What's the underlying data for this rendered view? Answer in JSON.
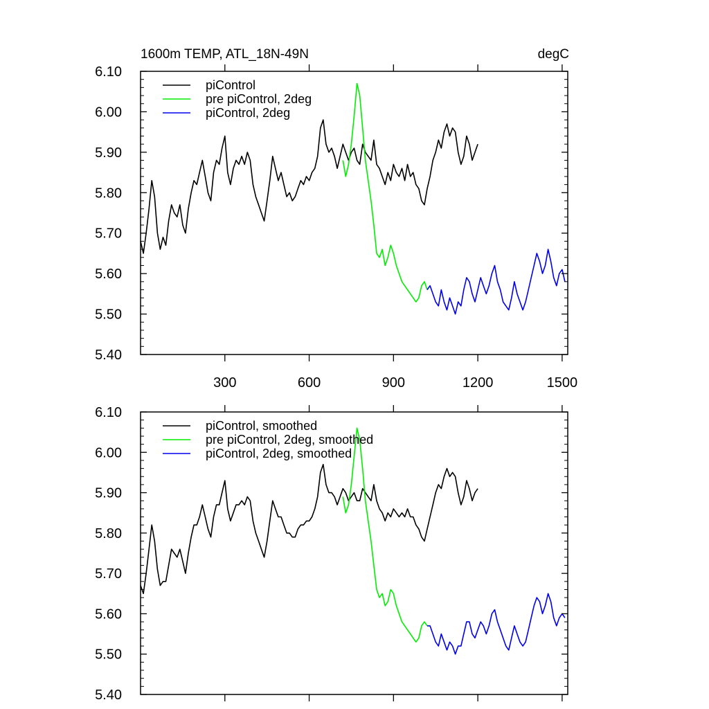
{
  "figure": {
    "title_left": "1600m TEMP, ATL_18N-49N",
    "title_right": "degC"
  },
  "colors": {
    "piControl": "#000000",
    "pre_piControl_2deg": "#00ee00",
    "piControl_2deg": "#0000ee"
  },
  "chart_data": [
    {
      "type": "line",
      "panel": "top",
      "title": "1600m TEMP, ATL_18N-49N",
      "units": "degC",
      "xlim": [
        0,
        1520
      ],
      "ylim": [
        5.4,
        6.1
      ],
      "xticks": [
        300,
        600,
        900,
        1200,
        1500
      ],
      "ytick_labels": [
        "5.40",
        "5.50",
        "5.60",
        "5.70",
        "5.80",
        "5.90",
        "6.00",
        "6.10"
      ],
      "legend_position": "top-left",
      "series": [
        {
          "name": "piControl",
          "color": "#000000",
          "x": [
            0,
            10,
            20,
            30,
            40,
            50,
            60,
            70,
            80,
            90,
            100,
            110,
            120,
            130,
            140,
            150,
            160,
            170,
            180,
            190,
            200,
            210,
            220,
            230,
            240,
            250,
            260,
            270,
            280,
            290,
            300,
            310,
            320,
            330,
            340,
            350,
            360,
            370,
            380,
            390,
            400,
            410,
            420,
            430,
            440,
            450,
            460,
            470,
            480,
            490,
            500,
            510,
            520,
            530,
            540,
            550,
            560,
            570,
            580,
            590,
            600,
            610,
            620,
            630,
            640,
            650,
            660,
            670,
            680,
            690,
            700,
            710,
            720,
            730,
            740,
            750,
            760,
            770,
            780,
            790,
            800,
            810,
            820,
            830,
            840,
            850,
            860,
            870,
            880,
            890,
            900,
            910,
            920,
            930,
            940,
            950,
            960,
            970,
            980,
            990,
            1000,
            1010,
            1020,
            1030,
            1040,
            1050,
            1060,
            1070,
            1080,
            1090,
            1100,
            1110,
            1120,
            1130,
            1140,
            1150,
            1160,
            1170,
            1180,
            1190,
            1200
          ],
          "y": [
            5.68,
            5.65,
            5.7,
            5.76,
            5.83,
            5.79,
            5.7,
            5.66,
            5.69,
            5.67,
            5.73,
            5.77,
            5.75,
            5.74,
            5.77,
            5.72,
            5.7,
            5.76,
            5.8,
            5.83,
            5.82,
            5.85,
            5.88,
            5.84,
            5.8,
            5.78,
            5.85,
            5.88,
            5.87,
            5.91,
            5.94,
            5.85,
            5.82,
            5.86,
            5.88,
            5.87,
            5.89,
            5.87,
            5.9,
            5.88,
            5.82,
            5.79,
            5.77,
            5.75,
            5.73,
            5.78,
            5.83,
            5.89,
            5.86,
            5.83,
            5.85,
            5.82,
            5.79,
            5.8,
            5.78,
            5.79,
            5.81,
            5.83,
            5.82,
            5.84,
            5.83,
            5.85,
            5.86,
            5.89,
            5.96,
            5.98,
            5.92,
            5.9,
            5.91,
            5.89,
            5.86,
            5.89,
            5.92,
            5.9,
            5.88,
            5.9,
            5.91,
            5.88,
            5.87,
            5.92,
            5.9,
            5.89,
            5.88,
            5.93,
            5.87,
            5.86,
            5.84,
            5.82,
            5.85,
            5.83,
            5.87,
            5.85,
            5.84,
            5.86,
            5.83,
            5.87,
            5.84,
            5.85,
            5.82,
            5.81,
            5.78,
            5.77,
            5.81,
            5.84,
            5.88,
            5.9,
            5.93,
            5.91,
            5.95,
            5.97,
            5.94,
            5.96,
            5.95,
            5.9,
            5.87,
            5.89,
            5.94,
            5.92,
            5.88,
            5.9,
            5.92
          ]
        },
        {
          "name": "pre piControl, 2deg",
          "color": "#00ee00",
          "x": [
            720,
            730,
            740,
            750,
            760,
            770,
            780,
            790,
            800,
            810,
            820,
            830,
            840,
            850,
            860,
            870,
            880,
            890,
            900,
            910,
            920,
            930,
            940,
            950,
            960,
            970,
            980,
            990,
            1000,
            1010,
            1020
          ],
          "y": [
            5.88,
            5.84,
            5.87,
            5.92,
            5.99,
            6.07,
            6.04,
            5.96,
            5.88,
            5.83,
            5.78,
            5.72,
            5.65,
            5.64,
            5.66,
            5.62,
            5.64,
            5.67,
            5.65,
            5.62,
            5.6,
            5.58,
            5.57,
            5.56,
            5.55,
            5.54,
            5.53,
            5.54,
            5.57,
            5.58,
            5.56
          ]
        },
        {
          "name": "piControl, 2deg",
          "color": "#0000ee",
          "x": [
            1020,
            1030,
            1040,
            1050,
            1060,
            1070,
            1080,
            1090,
            1100,
            1110,
            1120,
            1130,
            1140,
            1150,
            1160,
            1170,
            1180,
            1190,
            1200,
            1210,
            1220,
            1230,
            1240,
            1250,
            1260,
            1270,
            1280,
            1290,
            1300,
            1310,
            1320,
            1330,
            1340,
            1350,
            1360,
            1370,
            1380,
            1390,
            1400,
            1410,
            1420,
            1430,
            1440,
            1450,
            1460,
            1470,
            1480,
            1490,
            1500,
            1510
          ],
          "y": [
            5.56,
            5.57,
            5.55,
            5.53,
            5.52,
            5.56,
            5.53,
            5.51,
            5.54,
            5.52,
            5.5,
            5.53,
            5.52,
            5.56,
            5.59,
            5.58,
            5.55,
            5.53,
            5.56,
            5.59,
            5.57,
            5.55,
            5.57,
            5.6,
            5.62,
            5.58,
            5.56,
            5.53,
            5.52,
            5.51,
            5.54,
            5.58,
            5.55,
            5.53,
            5.51,
            5.53,
            5.56,
            5.59,
            5.62,
            5.65,
            5.63,
            5.6,
            5.62,
            5.66,
            5.63,
            5.59,
            5.57,
            5.6,
            5.61,
            5.58
          ]
        }
      ]
    },
    {
      "type": "line",
      "panel": "bottom",
      "xlim": [
        0,
        1520
      ],
      "ylim": [
        5.4,
        6.1
      ],
      "xticks": [
        300,
        600,
        900,
        1200,
        1500
      ],
      "ytick_labels": [
        "5.40",
        "5.50",
        "5.60",
        "5.70",
        "5.80",
        "5.90",
        "6.00",
        "6.10"
      ],
      "legend_position": "top-left",
      "series": [
        {
          "name": "piControl, smoothed",
          "color": "#000000",
          "x": [
            0,
            10,
            20,
            30,
            40,
            50,
            60,
            70,
            80,
            90,
            100,
            110,
            120,
            130,
            140,
            150,
            160,
            170,
            180,
            190,
            200,
            210,
            220,
            230,
            240,
            250,
            260,
            270,
            280,
            290,
            300,
            310,
            320,
            330,
            340,
            350,
            360,
            370,
            380,
            390,
            400,
            410,
            420,
            430,
            440,
            450,
            460,
            470,
            480,
            490,
            500,
            510,
            520,
            530,
            540,
            550,
            560,
            570,
            580,
            590,
            600,
            610,
            620,
            630,
            640,
            650,
            660,
            670,
            680,
            690,
            700,
            710,
            720,
            730,
            740,
            750,
            760,
            770,
            780,
            790,
            800,
            810,
            820,
            830,
            840,
            850,
            860,
            870,
            880,
            890,
            900,
            910,
            920,
            930,
            940,
            950,
            960,
            970,
            980,
            990,
            1000,
            1010,
            1020,
            1030,
            1040,
            1050,
            1060,
            1070,
            1080,
            1090,
            1100,
            1110,
            1120,
            1130,
            1140,
            1150,
            1160,
            1170,
            1180,
            1190,
            1200
          ],
          "y": [
            5.67,
            5.65,
            5.7,
            5.76,
            5.82,
            5.78,
            5.71,
            5.67,
            5.68,
            5.68,
            5.72,
            5.76,
            5.75,
            5.74,
            5.76,
            5.73,
            5.7,
            5.75,
            5.79,
            5.82,
            5.82,
            5.84,
            5.87,
            5.84,
            5.81,
            5.79,
            5.84,
            5.87,
            5.87,
            5.9,
            5.93,
            5.86,
            5.83,
            5.85,
            5.87,
            5.87,
            5.88,
            5.87,
            5.89,
            5.88,
            5.83,
            5.8,
            5.78,
            5.76,
            5.74,
            5.78,
            5.83,
            5.88,
            5.86,
            5.84,
            5.84,
            5.82,
            5.8,
            5.8,
            5.79,
            5.79,
            5.81,
            5.82,
            5.82,
            5.83,
            5.83,
            5.84,
            5.86,
            5.89,
            5.95,
            5.97,
            5.92,
            5.9,
            5.9,
            5.89,
            5.87,
            5.89,
            5.91,
            5.9,
            5.88,
            5.89,
            5.9,
            5.88,
            5.88,
            5.91,
            5.9,
            5.89,
            5.88,
            5.92,
            5.88,
            5.86,
            5.85,
            5.83,
            5.85,
            5.84,
            5.86,
            5.85,
            5.84,
            5.85,
            5.84,
            5.86,
            5.84,
            5.84,
            5.82,
            5.81,
            5.79,
            5.78,
            5.81,
            5.84,
            5.87,
            5.9,
            5.92,
            5.91,
            5.94,
            5.96,
            5.94,
            5.95,
            5.94,
            5.9,
            5.87,
            5.89,
            5.93,
            5.91,
            5.88,
            5.9,
            5.91
          ]
        },
        {
          "name": "pre piControl, 2deg, smoothed",
          "color": "#00ee00",
          "x": [
            720,
            730,
            740,
            750,
            760,
            770,
            780,
            790,
            800,
            810,
            820,
            830,
            840,
            850,
            860,
            870,
            880,
            890,
            900,
            910,
            920,
            930,
            940,
            950,
            960,
            970,
            980,
            990,
            1000,
            1010,
            1020
          ],
          "y": [
            5.89,
            5.85,
            5.87,
            5.92,
            5.99,
            6.06,
            6.03,
            5.96,
            5.88,
            5.83,
            5.78,
            5.72,
            5.66,
            5.64,
            5.65,
            5.62,
            5.63,
            5.66,
            5.65,
            5.62,
            5.6,
            5.58,
            5.57,
            5.56,
            5.55,
            5.54,
            5.53,
            5.54,
            5.57,
            5.58,
            5.57
          ]
        },
        {
          "name": "piControl, 2deg, smoothed",
          "color": "#0000ee",
          "x": [
            1020,
            1030,
            1040,
            1050,
            1060,
            1070,
            1080,
            1090,
            1100,
            1110,
            1120,
            1130,
            1140,
            1150,
            1160,
            1170,
            1180,
            1190,
            1200,
            1210,
            1220,
            1230,
            1240,
            1250,
            1260,
            1270,
            1280,
            1290,
            1300,
            1310,
            1320,
            1330,
            1340,
            1350,
            1360,
            1370,
            1380,
            1390,
            1400,
            1410,
            1420,
            1430,
            1440,
            1450,
            1460,
            1470,
            1480,
            1490,
            1500,
            1510
          ],
          "y": [
            5.57,
            5.57,
            5.55,
            5.53,
            5.52,
            5.55,
            5.53,
            5.51,
            5.53,
            5.52,
            5.5,
            5.52,
            5.52,
            5.55,
            5.58,
            5.58,
            5.55,
            5.54,
            5.56,
            5.58,
            5.57,
            5.55,
            5.57,
            5.6,
            5.61,
            5.58,
            5.56,
            5.54,
            5.52,
            5.51,
            5.54,
            5.57,
            5.55,
            5.53,
            5.52,
            5.53,
            5.56,
            5.59,
            5.62,
            5.64,
            5.63,
            5.6,
            5.62,
            5.65,
            5.63,
            5.59,
            5.57,
            5.59,
            5.6,
            5.59
          ]
        }
      ]
    }
  ]
}
